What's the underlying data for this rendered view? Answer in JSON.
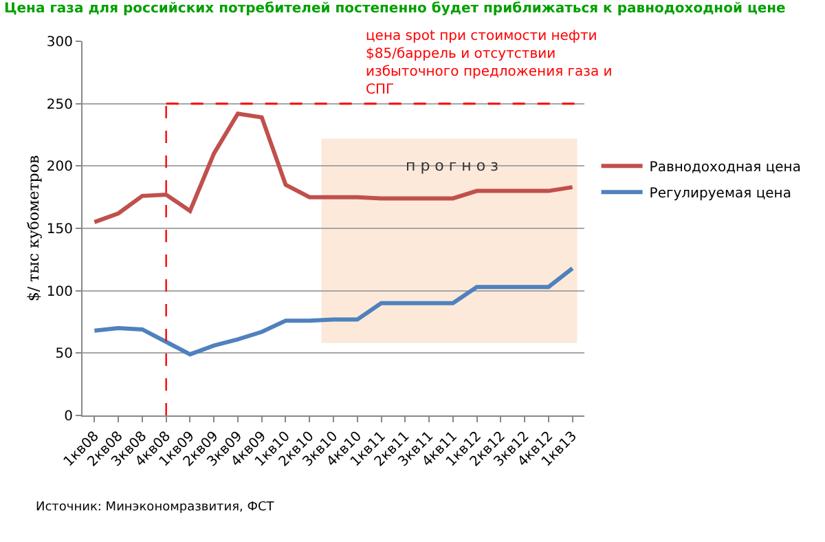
{
  "chart_data": {
    "type": "line",
    "title": "Цена газа для российских потребителей постепенно будет приближаться к равнодоходной цене",
    "ylabel": "$/ тыс кубометров",
    "categories": [
      "1кв08",
      "2кв08",
      "3кв08",
      "4кв08",
      "1кв09",
      "2кв09",
      "3кв09",
      "4кв09",
      "1кв10",
      "2кв10",
      "3кв10",
      "4кв10",
      "1кв11",
      "2кв11",
      "3кв11",
      "4кв11",
      "1кв12",
      "2кв12",
      "3кв12",
      "4кв12",
      "1кв13"
    ],
    "series": [
      {
        "name": "Равнодоходная цена",
        "color": "#c0504d",
        "values": [
          155,
          162,
          176,
          177,
          164,
          210,
          242,
          239,
          185,
          175,
          175,
          175,
          174,
          174,
          174,
          174,
          180,
          180,
          180,
          180,
          183
        ]
      },
      {
        "name": "Регулируемая цена",
        "color": "#4f81bd",
        "values": [
          68,
          70,
          69,
          59,
          49,
          56,
          61,
          67,
          76,
          76,
          77,
          77,
          90,
          90,
          90,
          90,
          103,
          103,
          103,
          103,
          118
        ]
      }
    ],
    "ylim": [
      0,
      300
    ],
    "yticks": [
      0,
      50,
      100,
      150,
      200,
      250,
      300
    ],
    "grid": "y",
    "legend": "right",
    "marker": "none",
    "line_style": "solid",
    "ref_lines": [
      {
        "axis": "x",
        "value": "4кв08",
        "color": "#ff0000",
        "line_style": "dashed"
      },
      {
        "axis": "y",
        "value": 250,
        "label": "цена spot при стоимости нефти $85/баррель и отсутствии избыточного предложения газа и СПГ",
        "color": "#ff0000",
        "line_style": "dashed"
      }
    ],
    "bands": [
      {
        "axis": "x",
        "from": "3кв10",
        "to": "1кв13",
        "label": "п р о г н о з",
        "color": "#fde9d9"
      }
    ],
    "annotations": [
      "Источник: Минэкономразвития, ФСТ"
    ]
  }
}
